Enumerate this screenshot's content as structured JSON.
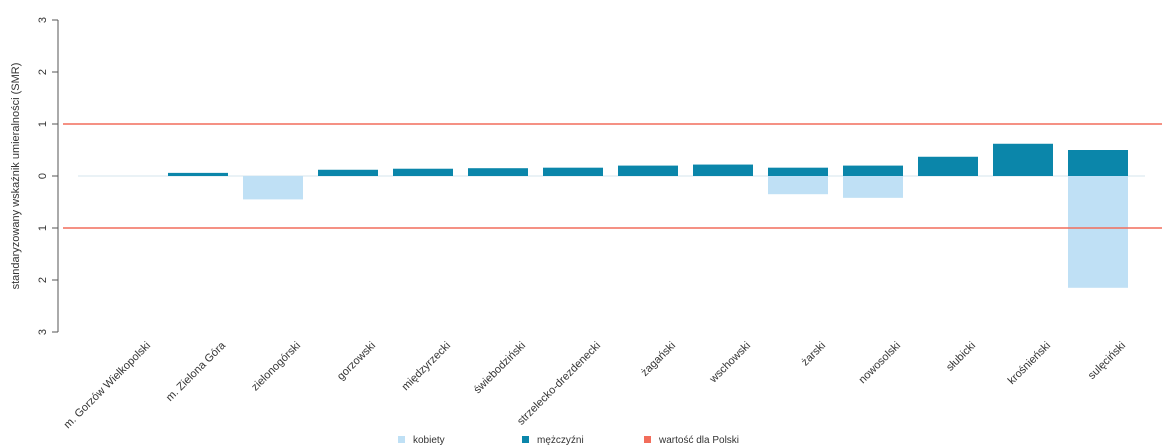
{
  "chart_data": {
    "type": "bar",
    "title": "",
    "xlabel": "",
    "ylabel": "standaryzowany wskaźnik umieralności (SMR)",
    "ylim": [
      -3,
      3
    ],
    "y_ticks": [
      3,
      2,
      1,
      0,
      -1,
      -2,
      -3
    ],
    "y_tick_labels": [
      "3",
      "2",
      "1",
      "0",
      "1",
      "2",
      "3"
    ],
    "grid": false,
    "legend_position": "bottom",
    "categories": [
      "m. Gorzów Wielkopolski",
      "m. Zielona Góra",
      "zielonogórski",
      "gorzowski",
      "międzyrzecki",
      "świebodziński",
      "strzelecko-drezdenecki",
      "żagański",
      "wschowski",
      "żarski",
      "nowosolski",
      "słubicki",
      "krośnieński",
      "sulęciński"
    ],
    "series": [
      {
        "name": "kobiety",
        "color": "#bfe0f5",
        "values": [
          0,
          0,
          -0.45,
          0,
          0,
          0,
          0,
          0,
          0,
          -0.35,
          -0.42,
          0,
          0,
          -2.15
        ]
      },
      {
        "name": "mężczyźni",
        "color": "#0b86aa",
        "values": [
          0,
          0.06,
          0,
          0.12,
          0.14,
          0.15,
          0.16,
          0.2,
          0.22,
          0.16,
          0.2,
          0.37,
          0.62,
          0.5
        ]
      }
    ],
    "reference_lines": [
      {
        "name": "wartość dla Polski",
        "color": "#f26d5b",
        "values": [
          1,
          -1
        ]
      }
    ]
  }
}
